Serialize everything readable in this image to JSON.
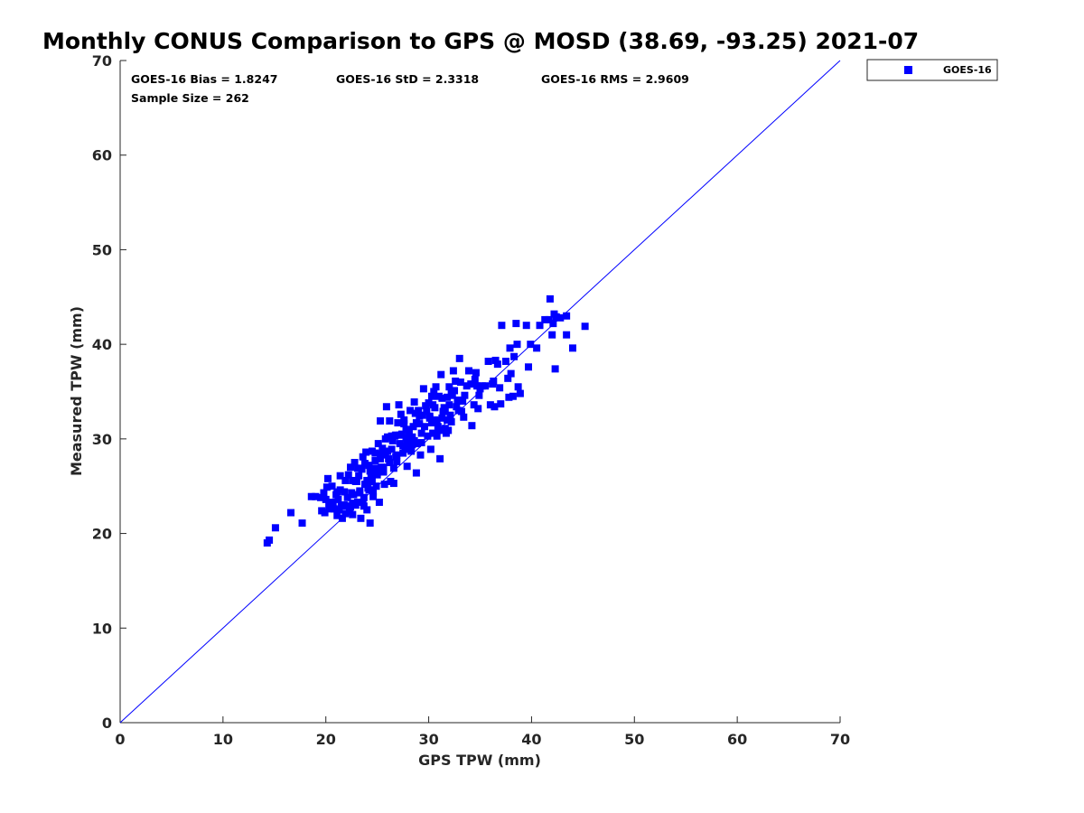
{
  "colors": {
    "series": "#0000ff",
    "axis": "#262626",
    "diagonal": "#0000ff"
  },
  "chart_data": {
    "type": "scatter",
    "title": "Monthly CONUS Comparison to GPS @ MOSD (38.69, -93.25) 2021-07",
    "xlabel": "GPS TPW (mm)",
    "ylabel": "Measured TPW (mm)",
    "xlim": [
      0,
      70
    ],
    "ylim": [
      0,
      70
    ],
    "xticks": [
      "0",
      "10",
      "20",
      "30",
      "40",
      "50",
      "60",
      "70"
    ],
    "yticks": [
      "0",
      "10",
      "20",
      "30",
      "40",
      "50",
      "60",
      "70"
    ],
    "grid": false,
    "legend_position": "top-right (outside plot)",
    "reference_line": {
      "from": [
        0,
        0
      ],
      "to": [
        70,
        70
      ]
    },
    "stats": {
      "bias": "GOES-16 Bias = 1.8247",
      "std": "GOES-16 StD = 2.3318",
      "rms": "GOES-16 RMS = 2.9609",
      "sample_size": "Sample Size = 262"
    },
    "series": [
      {
        "name": "GOES-16",
        "marker": "square",
        "points": [
          [
            14.3,
            19.0
          ],
          [
            14.5,
            19.3
          ],
          [
            15.1,
            20.6
          ],
          [
            16.6,
            22.2
          ],
          [
            17.7,
            21.1
          ],
          [
            18.6,
            23.9
          ],
          [
            19.0,
            23.9
          ],
          [
            19.5,
            23.8
          ],
          [
            19.6,
            22.4
          ],
          [
            19.9,
            22.2
          ],
          [
            20.0,
            23.6
          ],
          [
            20.1,
            24.9
          ],
          [
            20.2,
            25.8
          ],
          [
            20.3,
            22.9
          ],
          [
            20.5,
            23.3
          ],
          [
            20.6,
            25.0
          ],
          [
            20.8,
            22.6
          ],
          [
            21.0,
            24.1
          ],
          [
            21.1,
            21.9
          ],
          [
            21.2,
            23.6
          ],
          [
            21.3,
            22.5
          ],
          [
            21.4,
            24.6
          ],
          [
            21.4,
            26.1
          ],
          [
            21.6,
            21.6
          ],
          [
            21.7,
            23.0
          ],
          [
            21.8,
            24.4
          ],
          [
            21.9,
            22.1
          ],
          [
            22.0,
            22.9
          ],
          [
            22.1,
            23.8
          ],
          [
            22.2,
            26.2
          ],
          [
            22.3,
            22.3
          ],
          [
            22.4,
            27.0
          ],
          [
            22.5,
            24.3
          ],
          [
            22.6,
            25.6
          ],
          [
            22.6,
            22.0
          ],
          [
            22.8,
            27.5
          ],
          [
            22.9,
            23.0
          ],
          [
            23.0,
            25.5
          ],
          [
            23.1,
            23.3
          ],
          [
            23.2,
            26.1
          ],
          [
            23.3,
            24.5
          ],
          [
            23.4,
            21.6
          ],
          [
            23.5,
            26.8
          ],
          [
            23.6,
            23.3
          ],
          [
            23.7,
            22.9
          ],
          [
            23.8,
            25.2
          ],
          [
            23.9,
            28.6
          ],
          [
            24.0,
            22.5
          ],
          [
            24.1,
            24.8
          ],
          [
            24.2,
            27.2
          ],
          [
            24.3,
            21.1
          ],
          [
            24.4,
            26.1
          ],
          [
            24.5,
            28.7
          ],
          [
            24.6,
            24.4
          ],
          [
            24.7,
            26.5
          ],
          [
            24.8,
            27.7
          ],
          [
            24.9,
            25.0
          ],
          [
            25.0,
            26.2
          ],
          [
            25.1,
            29.5
          ],
          [
            25.2,
            23.3
          ],
          [
            25.3,
            31.9
          ],
          [
            25.4,
            27.0
          ],
          [
            25.5,
            29.0
          ],
          [
            25.6,
            26.5
          ],
          [
            25.7,
            25.2
          ],
          [
            25.8,
            28.3
          ],
          [
            25.9,
            33.4
          ],
          [
            26.0,
            30.2
          ],
          [
            26.1,
            27.9
          ],
          [
            26.2,
            31.9
          ],
          [
            26.3,
            25.5
          ],
          [
            26.4,
            28.9
          ],
          [
            26.5,
            29.8
          ],
          [
            26.6,
            25.3
          ],
          [
            26.7,
            30.3
          ],
          [
            26.8,
            28.1
          ],
          [
            26.9,
            27.6
          ],
          [
            27.0,
            31.7
          ],
          [
            27.1,
            33.6
          ],
          [
            27.2,
            29.5
          ],
          [
            27.3,
            32.6
          ],
          [
            27.4,
            30.5
          ],
          [
            27.5,
            29.3
          ],
          [
            27.6,
            31.6
          ],
          [
            27.7,
            28.9
          ],
          [
            27.8,
            31.0
          ],
          [
            27.9,
            27.1
          ],
          [
            28.0,
            29.7
          ],
          [
            28.1,
            30.8
          ],
          [
            28.2,
            33.0
          ],
          [
            28.3,
            28.7
          ],
          [
            28.4,
            30.2
          ],
          [
            28.5,
            31.3
          ],
          [
            28.6,
            29.8
          ],
          [
            28.7,
            32.7
          ],
          [
            28.8,
            26.4
          ],
          [
            28.9,
            29.5
          ],
          [
            29.0,
            33.0
          ],
          [
            29.2,
            28.3
          ],
          [
            29.3,
            30.6
          ],
          [
            29.4,
            32.5
          ],
          [
            29.5,
            35.3
          ],
          [
            29.7,
            33.5
          ],
          [
            29.9,
            30.3
          ],
          [
            30.0,
            33.8
          ],
          [
            30.1,
            32.2
          ],
          [
            30.2,
            28.9
          ],
          [
            30.3,
            31.7
          ],
          [
            30.4,
            33.6
          ],
          [
            30.5,
            35.0
          ],
          [
            30.6,
            32.0
          ],
          [
            30.7,
            35.5
          ],
          [
            30.8,
            30.3
          ],
          [
            30.9,
            31.3
          ],
          [
            31.0,
            34.5
          ],
          [
            31.1,
            27.9
          ],
          [
            31.2,
            36.8
          ],
          [
            31.3,
            32.2
          ],
          [
            31.5,
            33.3
          ],
          [
            31.6,
            31.1
          ],
          [
            31.7,
            30.6
          ],
          [
            31.8,
            32.0
          ],
          [
            31.9,
            30.9
          ],
          [
            32.0,
            35.5
          ],
          [
            32.1,
            32.5
          ],
          [
            32.2,
            35.0
          ],
          [
            32.3,
            34.6
          ],
          [
            32.4,
            37.2
          ],
          [
            32.5,
            35.1
          ],
          [
            32.6,
            36.1
          ],
          [
            32.8,
            34.1
          ],
          [
            32.9,
            33.0
          ],
          [
            33.0,
            38.5
          ],
          [
            33.1,
            36.0
          ],
          [
            33.2,
            32.9
          ],
          [
            33.4,
            32.3
          ],
          [
            33.5,
            34.6
          ],
          [
            33.7,
            35.6
          ],
          [
            33.9,
            37.2
          ],
          [
            34.1,
            35.8
          ],
          [
            34.2,
            31.4
          ],
          [
            34.4,
            33.6
          ],
          [
            34.6,
            37.0
          ],
          [
            34.7,
            35.6
          ],
          [
            34.8,
            33.2
          ],
          [
            34.9,
            34.6
          ],
          [
            35.0,
            35.3
          ],
          [
            35.2,
            35.6
          ],
          [
            35.5,
            35.6
          ],
          [
            35.8,
            38.2
          ],
          [
            36.0,
            33.6
          ],
          [
            36.2,
            35.8
          ],
          [
            36.4,
            33.4
          ],
          [
            36.5,
            38.3
          ],
          [
            36.7,
            37.9
          ],
          [
            36.9,
            35.4
          ],
          [
            37.0,
            33.7
          ],
          [
            37.1,
            42.0
          ],
          [
            37.5,
            38.2
          ],
          [
            37.7,
            36.4
          ],
          [
            37.8,
            34.4
          ],
          [
            37.9,
            39.6
          ],
          [
            38.0,
            36.9
          ],
          [
            38.2,
            34.5
          ],
          [
            38.3,
            38.7
          ],
          [
            38.5,
            42.2
          ],
          [
            38.6,
            40.0
          ],
          [
            38.7,
            35.5
          ],
          [
            38.9,
            34.8
          ],
          [
            39.5,
            42.0
          ],
          [
            39.7,
            37.6
          ],
          [
            39.9,
            40.0
          ],
          [
            40.5,
            39.6
          ],
          [
            40.8,
            42.0
          ],
          [
            41.3,
            42.6
          ],
          [
            41.7,
            42.6
          ],
          [
            41.8,
            44.8
          ],
          [
            42.0,
            41.0
          ],
          [
            42.1,
            42.2
          ],
          [
            42.2,
            43.2
          ],
          [
            42.3,
            37.4
          ],
          [
            42.4,
            42.9
          ],
          [
            42.8,
            42.8
          ],
          [
            43.4,
            41.0
          ],
          [
            43.4,
            43.0
          ],
          [
            44.0,
            39.6
          ],
          [
            45.2,
            41.9
          ],
          [
            21.5,
            23.0
          ],
          [
            22.7,
            24.1
          ],
          [
            23.8,
            27.4
          ],
          [
            24.9,
            26.9
          ],
          [
            26.0,
            28.7
          ],
          [
            27.2,
            30.4
          ],
          [
            28.4,
            29.4
          ],
          [
            29.6,
            31.3
          ],
          [
            30.8,
            31.9
          ],
          [
            32.0,
            33.6
          ],
          [
            33.3,
            34.0
          ],
          [
            34.5,
            36.3
          ],
          [
            36.3,
            36.1
          ],
          [
            24.0,
            25.6
          ],
          [
            25.4,
            28.4
          ],
          [
            26.6,
            26.9
          ],
          [
            27.9,
            29.9
          ],
          [
            29.1,
            31.6
          ],
          [
            30.3,
            34.5
          ],
          [
            31.4,
            32.9
          ],
          [
            23.1,
            26.9
          ],
          [
            24.6,
            23.9
          ],
          [
            25.8,
            30.0
          ],
          [
            20.4,
            22.6
          ],
          [
            21.8,
            23.0
          ],
          [
            22.9,
            25.5
          ],
          [
            24.2,
            24.6
          ],
          [
            25.6,
            26.6
          ],
          [
            26.9,
            28.3
          ],
          [
            28.1,
            29.3
          ],
          [
            29.8,
            32.9
          ],
          [
            31.0,
            30.9
          ],
          [
            32.7,
            33.4
          ],
          [
            20.7,
            23.3
          ],
          [
            21.9,
            25.6
          ],
          [
            23.3,
            24.3
          ],
          [
            24.5,
            25.5
          ],
          [
            25.3,
            27.9
          ],
          [
            26.4,
            30.3
          ],
          [
            27.6,
            32.0
          ],
          [
            28.8,
            31.7
          ],
          [
            30.1,
            32.4
          ],
          [
            31.3,
            34.3
          ],
          [
            19.8,
            24.3
          ],
          [
            22.4,
            22.8
          ],
          [
            23.6,
            28.1
          ],
          [
            24.8,
            28.5
          ],
          [
            26.2,
            27.5
          ],
          [
            27.5,
            28.5
          ],
          [
            28.6,
            33.9
          ],
          [
            29.3,
            29.6
          ],
          [
            30.4,
            30.6
          ],
          [
            31.8,
            34.4
          ],
          [
            21.1,
            24.4
          ],
          [
            22.6,
            23.2
          ],
          [
            23.7,
            23.8
          ],
          [
            24.3,
            26.6
          ],
          [
            25.6,
            27.0
          ],
          [
            26.8,
            30.4
          ],
          [
            27.8,
            30.1
          ],
          [
            28.3,
            29.0
          ],
          [
            29.1,
            32.4
          ],
          [
            30.6,
            33.3
          ],
          [
            31.6,
            33.0
          ],
          [
            32.2,
            31.8
          ]
        ]
      }
    ]
  }
}
